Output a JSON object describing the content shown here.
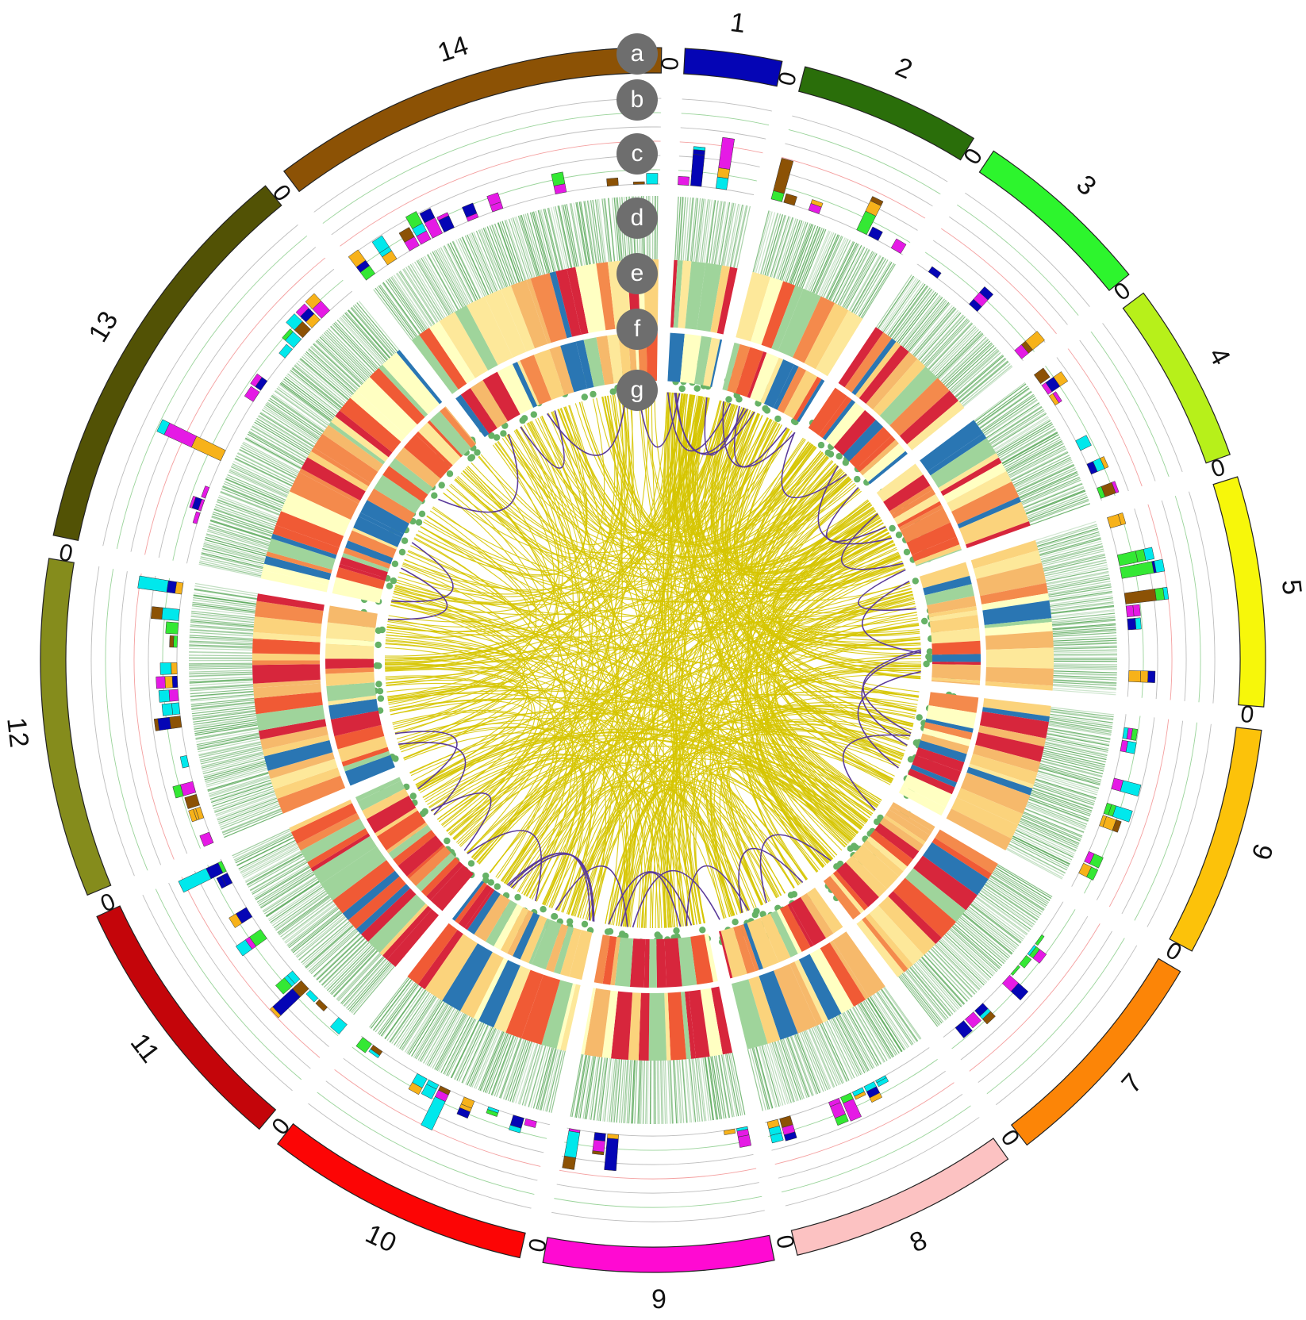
{
  "figure": {
    "chromosomes": [
      {
        "label": "1",
        "zero": "0",
        "color": "#0505b5",
        "size": 8
      },
      {
        "label": "2",
        "zero": "0",
        "color": "#2a6e0a",
        "size": 15
      },
      {
        "label": "3",
        "zero": "0",
        "color": "#2df52d",
        "size": 15
      },
      {
        "label": "4",
        "zero": "0",
        "color": "#b7f01a",
        "size": 15
      },
      {
        "label": "5",
        "zero": "0",
        "color": "#f7f70a",
        "size": 19
      },
      {
        "label": "6",
        "zero": "0",
        "color": "#fcc20a",
        "size": 19
      },
      {
        "label": "7",
        "zero": "0",
        "color": "#fc8507",
        "size": 19
      },
      {
        "label": "8",
        "zero": "0",
        "color": "#fcc2c2",
        "size": 19
      },
      {
        "label": "9",
        "zero": "0",
        "color": "#ff0ad2",
        "size": 19
      },
      {
        "label": "10",
        "zero": "0",
        "color": "#fc0505",
        "size": 22
      },
      {
        "label": "11",
        "zero": "0",
        "color": "#c4050a",
        "size": 22
      },
      {
        "label": "12",
        "zero": "0",
        "color": "#858c1c",
        "size": 28
      },
      {
        "label": "13",
        "zero": "0",
        "color": "#525205",
        "size": 34
      },
      {
        "label": "14",
        "zero": "0",
        "color": "#8c5205",
        "size": 33
      }
    ],
    "track_badges": [
      "a",
      "b",
      "c",
      "d",
      "e",
      "f",
      "g"
    ],
    "colors": {
      "badge": "#6e6e6e",
      "link": "#d6c500",
      "link_highlight": "#5a3a9a",
      "dot": "#66b266",
      "density_tick": "#4aa04a",
      "histogram": [
        "#00e8ec",
        "#f7b21a",
        "#34e834",
        "#8c5205",
        "#e51ae5",
        "#0505b5"
      ],
      "heat_palette": [
        "#f05a35",
        "#f48a4c",
        "#fbd37c",
        "#d7263c",
        "#2a76b3",
        "#fde89a",
        "#f6b96b",
        "#ffffc2",
        "#9fd49b"
      ]
    }
  }
}
